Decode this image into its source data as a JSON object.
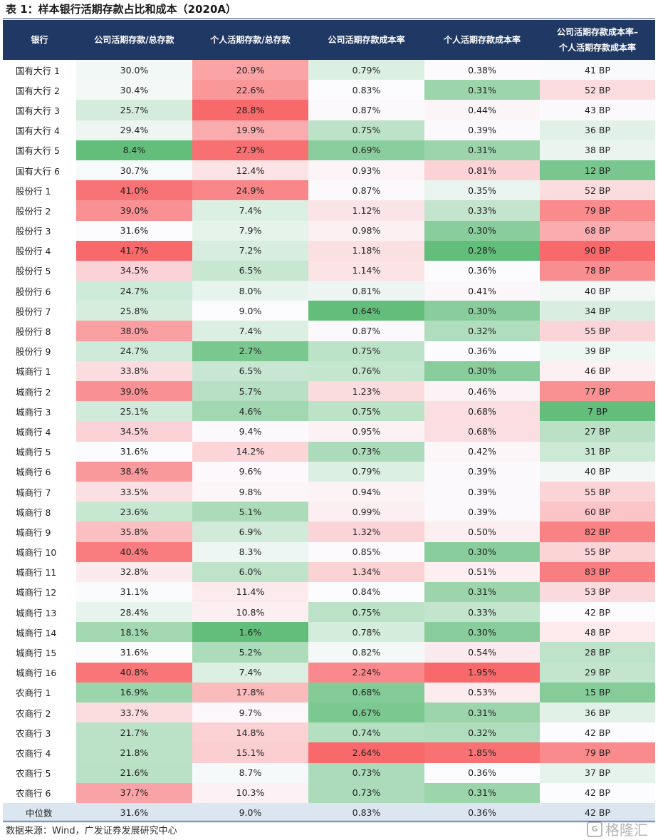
{
  "title": "表 1：样本银行活期存款占比和成本（2020A）",
  "headers": [
    "银行",
    "公司活期存款/总存款",
    "个人活期存款/总存款",
    "公司活期存款成本率",
    "个人活期存款成本率",
    "公司活期存款成本率–\n个人活期存款成本率"
  ],
  "rows": [
    [
      "国有大行 1",
      "30.0%",
      "20.9%",
      "0.79%",
      "0.38%",
      "41 BP"
    ],
    [
      "国有大行 2",
      "30.4%",
      "22.6%",
      "0.83%",
      "0.31%",
      "52 BP"
    ],
    [
      "国有大行 3",
      "25.7%",
      "28.8%",
      "0.87%",
      "0.44%",
      "43 BP"
    ],
    [
      "国有大行 4",
      "29.4%",
      "19.9%",
      "0.75%",
      "0.39%",
      "36 BP"
    ],
    [
      "国有大行 5",
      "8.4%",
      "27.9%",
      "0.69%",
      "0.31%",
      "38 BP"
    ],
    [
      "国有大行 6",
      "30.7%",
      "12.4%",
      "0.93%",
      "0.81%",
      "12 BP"
    ],
    [
      "股份行 1",
      "41.0%",
      "24.9%",
      "0.87%",
      "0.35%",
      "52 BP"
    ],
    [
      "股份行 2",
      "39.0%",
      "7.4%",
      "1.12%",
      "0.33%",
      "79 BP"
    ],
    [
      "股份行 3",
      "31.6%",
      "7.9%",
      "0.98%",
      "0.30%",
      "68 BP"
    ],
    [
      "股份行 4",
      "41.7%",
      "7.2%",
      "1.18%",
      "0.28%",
      "90 BP"
    ],
    [
      "股份行 5",
      "34.5%",
      "6.5%",
      "1.14%",
      "0.36%",
      "78 BP"
    ],
    [
      "股份行 6",
      "24.7%",
      "8.0%",
      "0.81%",
      "0.41%",
      "40 BP"
    ],
    [
      "股份行 7",
      "25.8%",
      "9.0%",
      "0.64%",
      "0.30%",
      "34 BP"
    ],
    [
      "股份行 8",
      "38.0%",
      "7.4%",
      "0.87%",
      "0.32%",
      "55 BP"
    ],
    [
      "股份行 9",
      "24.7%",
      "2.7%",
      "0.75%",
      "0.36%",
      "39 BP"
    ],
    [
      "城商行 1",
      "33.8%",
      "6.5%",
      "0.76%",
      "0.30%",
      "46 BP"
    ],
    [
      "城商行 2",
      "39.0%",
      "5.7%",
      "1.23%",
      "0.46%",
      "77 BP"
    ],
    [
      "城商行 3",
      "25.1%",
      "4.6%",
      "0.75%",
      "0.68%",
      "7 BP"
    ],
    [
      "城商行 4",
      "34.5%",
      "9.4%",
      "0.95%",
      "0.68%",
      "27 BP"
    ],
    [
      "城商行 5",
      "31.6%",
      "14.2%",
      "0.73%",
      "0.42%",
      "31 BP"
    ],
    [
      "城商行 6",
      "38.4%",
      "9.6%",
      "0.79%",
      "0.39%",
      "40 BP"
    ],
    [
      "城商行 7",
      "33.5%",
      "9.8%",
      "0.94%",
      "0.39%",
      "55 BP"
    ],
    [
      "城商行 8",
      "23.6%",
      "5.1%",
      "0.99%",
      "0.39%",
      "60 BP"
    ],
    [
      "城商行 9",
      "35.8%",
      "6.9%",
      "1.32%",
      "0.50%",
      "82 BP"
    ],
    [
      "城商行 10",
      "40.4%",
      "8.3%",
      "0.85%",
      "0.30%",
      "55 BP"
    ],
    [
      "城商行 11",
      "32.8%",
      "6.0%",
      "1.34%",
      "0.51%",
      "83 BP"
    ],
    [
      "城商行 12",
      "31.1%",
      "11.4%",
      "0.84%",
      "0.31%",
      "53 BP"
    ],
    [
      "城商行 13",
      "28.4%",
      "10.8%",
      "0.75%",
      "0.33%",
      "42 BP"
    ],
    [
      "城商行 14",
      "18.1%",
      "1.6%",
      "0.78%",
      "0.30%",
      "48 BP"
    ],
    [
      "城商行 15",
      "31.6%",
      "5.2%",
      "0.82%",
      "0.54%",
      "28 BP"
    ],
    [
      "城商行 16",
      "40.8%",
      "7.4%",
      "2.24%",
      "1.95%",
      "29 BP"
    ],
    [
      "农商行 1",
      "16.9%",
      "17.8%",
      "0.68%",
      "0.53%",
      "15 BP"
    ],
    [
      "农商行 2",
      "33.7%",
      "9.7%",
      "0.67%",
      "0.31%",
      "36 BP"
    ],
    [
      "农商行 3",
      "21.7%",
      "14.8%",
      "0.74%",
      "0.32%",
      "42 BP"
    ],
    [
      "农商行 4",
      "21.8%",
      "15.1%",
      "2.64%",
      "1.85%",
      "79 BP"
    ],
    [
      "农商行 5",
      "21.6%",
      "8.7%",
      "0.73%",
      "0.36%",
      "37 BP"
    ],
    [
      "农商行 6",
      "37.7%",
      "10.3%",
      "0.73%",
      "0.31%",
      "42 BP"
    ]
  ],
  "median": [
    "中位数",
    "31.6%",
    "9.0%",
    "0.83%",
    "0.36%",
    "42 BP"
  ],
  "source": "数据来源：Wind，广发证券发展研究中心",
  "watermark": "格隆汇",
  "colors": {
    "header_bg": "#1f3864",
    "high": "#f8696b",
    "low": "#63be7b",
    "mid": "#fcfcff",
    "median_bg": "#dce6f1"
  }
}
